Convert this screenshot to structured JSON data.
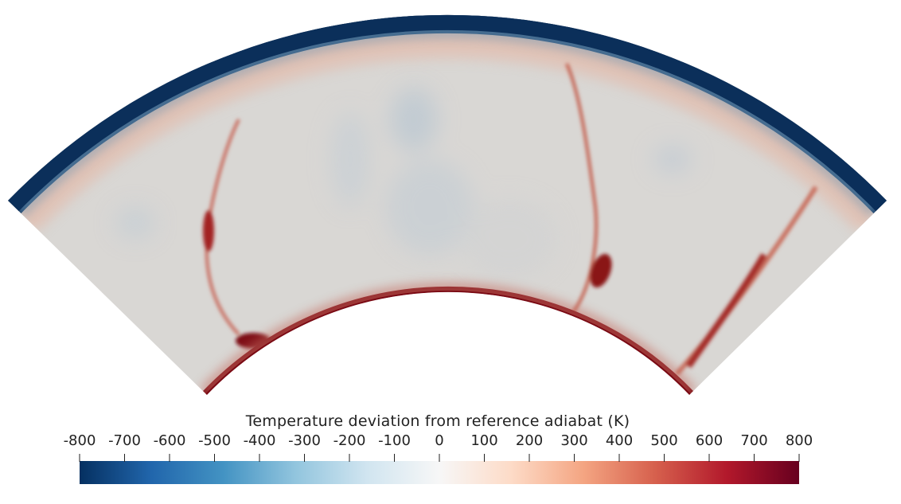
{
  "colorbar": {
    "title": "Temperature deviation from reference adiabat (K)",
    "ticks": [
      "-800",
      "-700",
      "-600",
      "-500",
      "-400",
      "-300",
      "-200",
      "-100",
      "0",
      "100",
      "200",
      "300",
      "400",
      "500",
      "600",
      "700",
      "800"
    ],
    "min": -800,
    "max": 800,
    "colormap": [
      "#053061",
      "#2166ac",
      "#4393c3",
      "#92c5de",
      "#d1e5f0",
      "#f7f7f7",
      "#fddbc7",
      "#f4a582",
      "#d6604d",
      "#b2182b",
      "#67001f"
    ]
  },
  "colors": {
    "cold_boundary": "#0b2f5a",
    "warm_lithosphere": "#e8b39c",
    "interior": "#d8d6d3",
    "plume": "#9a1c1c",
    "core_boundary": "#7a0a14",
    "cold_downwelling": "#b9c9d6"
  }
}
